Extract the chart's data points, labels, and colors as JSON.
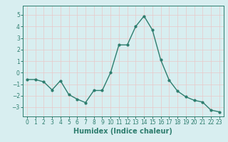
{
  "x": [
    0,
    1,
    2,
    3,
    4,
    5,
    6,
    7,
    8,
    9,
    10,
    11,
    12,
    13,
    14,
    15,
    16,
    17,
    18,
    19,
    20,
    21,
    22,
    23
  ],
  "y": [
    -0.6,
    -0.6,
    -0.8,
    -1.5,
    -0.7,
    -1.9,
    -2.3,
    -2.6,
    -1.55,
    -1.55,
    0.0,
    2.4,
    2.4,
    4.0,
    4.9,
    3.7,
    1.1,
    -0.65,
    -1.6,
    -2.1,
    -2.4,
    -2.55,
    -3.25,
    -3.4
  ],
  "line_color": "#2d7d6e",
  "marker": "o",
  "marker_size": 2,
  "linewidth": 1.0,
  "xlabel": "Humidex (Indice chaleur)",
  "xlabel_fontsize": 7,
  "xlabel_fontweight": "bold",
  "ylim": [
    -3.8,
    5.8
  ],
  "xlim": [
    -0.5,
    23.5
  ],
  "yticks": [
    -3,
    -2,
    -1,
    0,
    1,
    2,
    3,
    4,
    5
  ],
  "xticks": [
    0,
    1,
    2,
    3,
    4,
    5,
    6,
    7,
    8,
    9,
    10,
    11,
    12,
    13,
    14,
    15,
    16,
    17,
    18,
    19,
    20,
    21,
    22,
    23
  ],
  "grid_color": "#e8c8c8",
  "background_color": "#d8eef0",
  "tick_fontsize": 5.5,
  "spine_color": "#2d7d6e"
}
